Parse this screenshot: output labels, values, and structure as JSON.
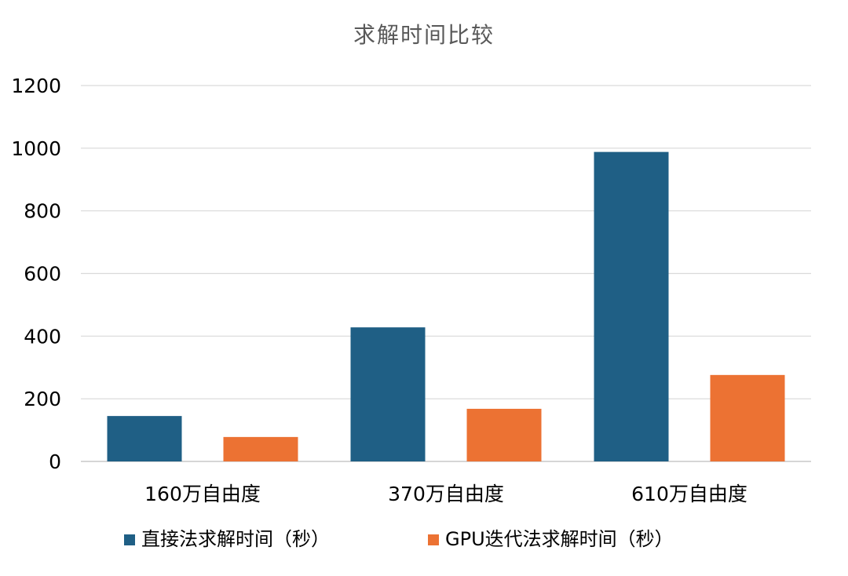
{
  "chart_data": {
    "type": "bar",
    "title": "求解时间比较",
    "categories": [
      "160万自由度",
      "370万自由度",
      "610万自由度"
    ],
    "series": [
      {
        "name": "直接法求解时间（秒）",
        "values": [
          145,
          428,
          988
        ],
        "color": "#1f5f85"
      },
      {
        "name": "GPU迭代法求解时间（秒）",
        "values": [
          78,
          168,
          276
        ],
        "color": "#ec7233"
      }
    ],
    "ylim": [
      0,
      1200
    ],
    "yticks": [
      0,
      200,
      400,
      600,
      800,
      1000,
      1200
    ],
    "grid": true,
    "legend_position": "bottom"
  }
}
